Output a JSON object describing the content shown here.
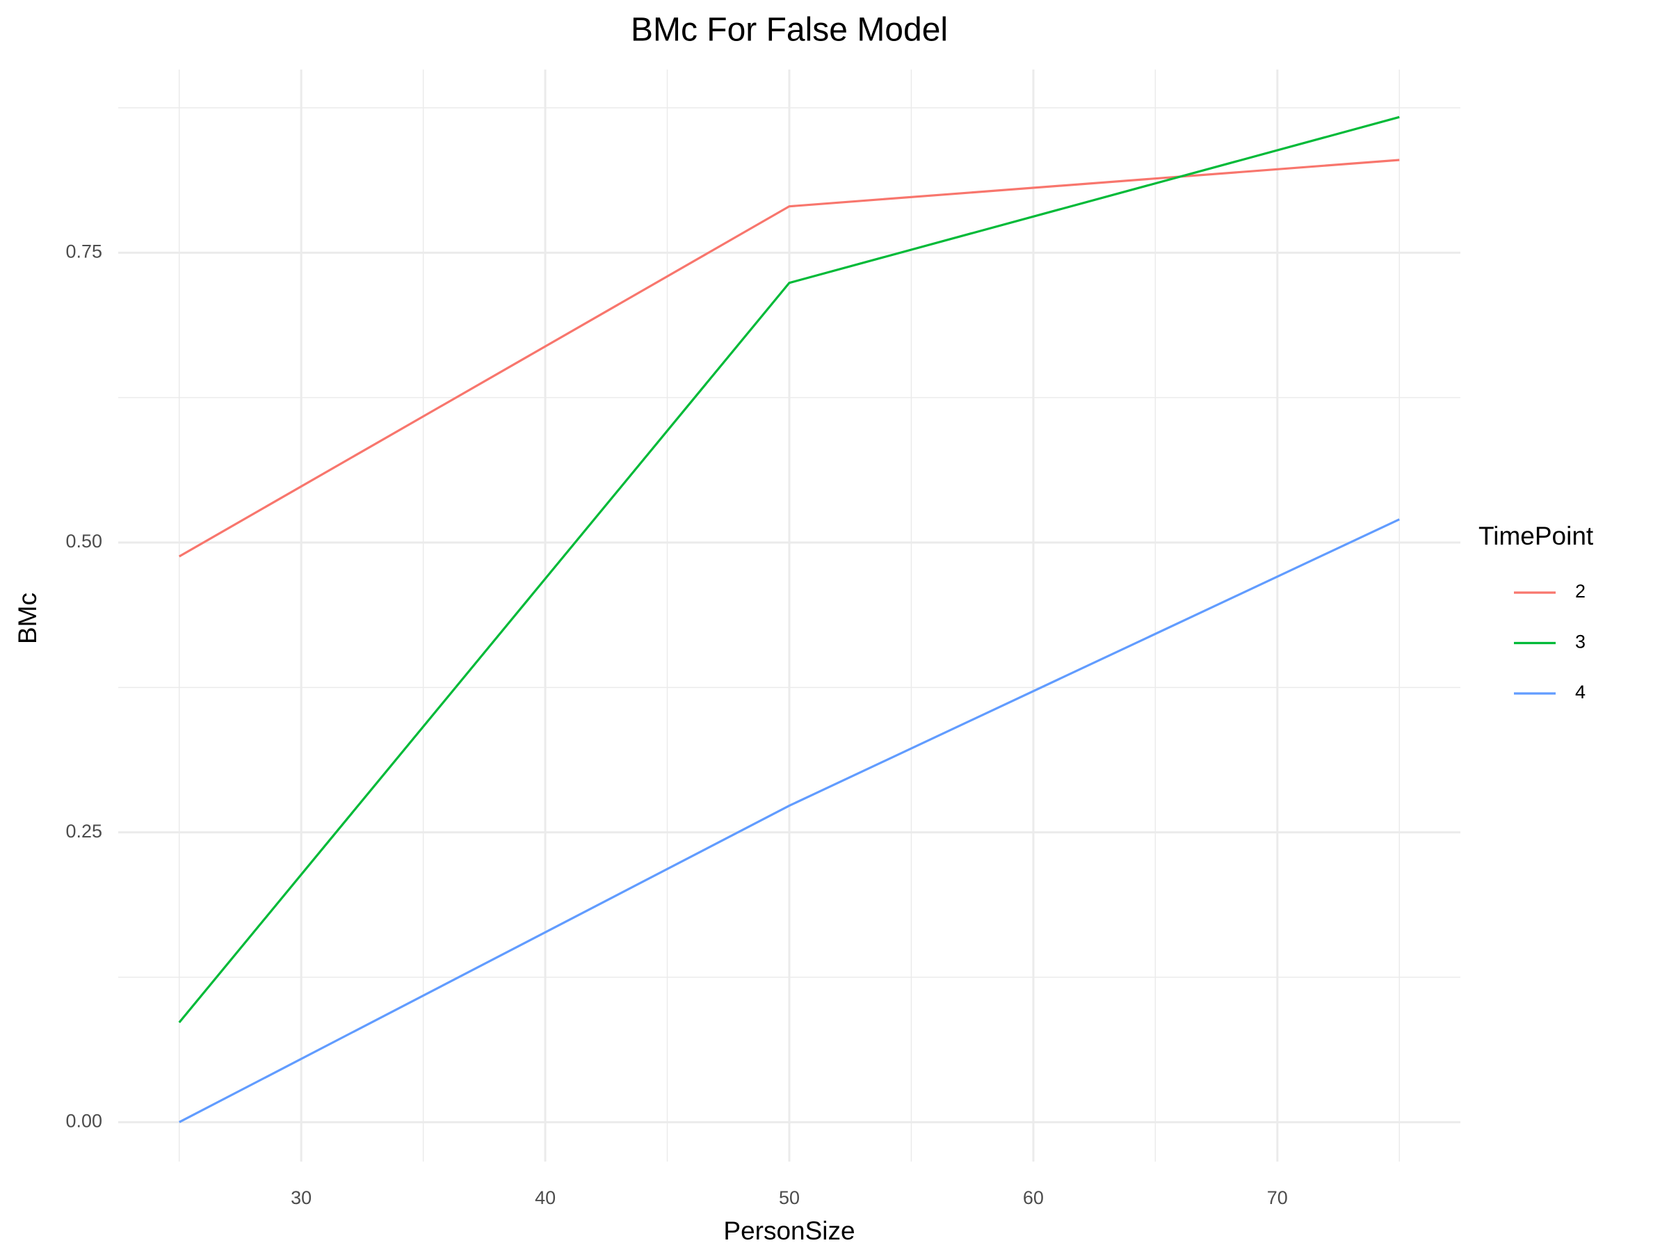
{
  "chart_data": {
    "type": "line",
    "title": "BMc For False Model",
    "x_label": "PersonSize",
    "y_label": "BMc",
    "x": [
      25,
      50,
      75
    ],
    "series": [
      {
        "name": "2",
        "color": "#F8766D",
        "values": [
          0.488,
          0.79,
          0.83
        ]
      },
      {
        "name": "3",
        "color": "#00BA38",
        "values": [
          0.086,
          0.724,
          0.867
        ]
      },
      {
        "name": "4",
        "color": "#619CFF",
        "values": [
          0.0,
          0.273,
          0.52
        ]
      }
    ],
    "legend_title": "TimePoint",
    "legend": "right",
    "xlim": [
      22.5,
      77.5
    ],
    "xticks": [
      30,
      40,
      50,
      60,
      70
    ],
    "ylim": [
      -0.034,
      0.908
    ],
    "yticks": [
      {
        "value": 0,
        "label": "0.00"
      },
      {
        "value": 0.25,
        "label": "0.25"
      },
      {
        "value": 0.5,
        "label": "0.50"
      },
      {
        "value": 0.75,
        "label": "0.75"
      }
    ],
    "grid": true
  }
}
